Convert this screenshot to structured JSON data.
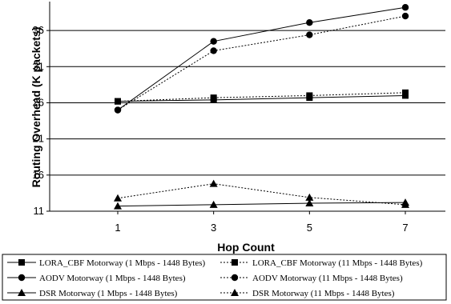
{
  "chart_data": {
    "type": "line",
    "title": "",
    "xlabel": "Hop Count",
    "ylabel": "Routing Overhead (K packets)",
    "x": [
      1,
      3,
      5,
      7
    ],
    "xticks": [
      "1",
      "3",
      "5",
      "7"
    ],
    "yticks": [
      "11",
      "16",
      "21",
      "26",
      "31",
      "36"
    ],
    "ylim": [
      11,
      40
    ],
    "grid": "horizontal",
    "legend_position": "bottom",
    "series": [
      {
        "name": "LORA_CBF Motorway (1 Mbps - 1448 Bytes)",
        "values": [
          26.2,
          26.4,
          26.7,
          27.0
        ],
        "marker": "square",
        "dash": "solid"
      },
      {
        "name": "LORA_CBF Motorway (11 Mbps - 1448 Bytes)",
        "values": [
          26.2,
          26.7,
          27.0,
          27.4
        ],
        "marker": "square",
        "dash": "dotted"
      },
      {
        "name": "AODV Motorway (1 Mbps - 1448 Bytes)",
        "values": [
          25.0,
          34.5,
          37.1,
          39.2
        ],
        "marker": "circle",
        "dash": "solid"
      },
      {
        "name": "AODV Motorway (11 Mbps - 1448 Bytes)",
        "values": [
          25.0,
          33.2,
          35.4,
          38.0
        ],
        "marker": "circle",
        "dash": "dotted"
      },
      {
        "name": "DSR Motorway (1 Mbps - 1448 Bytes)",
        "values": [
          11.7,
          11.9,
          12.1,
          12.2
        ],
        "marker": "triangle",
        "dash": "solid"
      },
      {
        "name": "DSR Motorway (11 Mbps - 1448 Bytes)",
        "values": [
          12.8,
          14.8,
          12.9,
          11.9
        ],
        "marker": "triangle",
        "dash": "dotted"
      }
    ]
  }
}
